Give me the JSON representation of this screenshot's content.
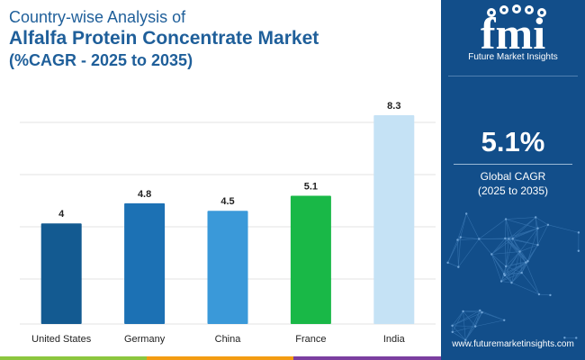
{
  "header": {
    "line1": "Country-wise Analysis of",
    "line2": "Alfalfa Protein Concentrate Market",
    "line3": "(%CAGR - 2025 to 2035)"
  },
  "chart_data": {
    "type": "bar",
    "categories": [
      "United States",
      "Germany",
      "China",
      "France",
      "India"
    ],
    "values": [
      4,
      4.8,
      4.5,
      5.1,
      8.3
    ],
    "data_labels": [
      "4",
      "4.8",
      "4.5",
      "5.1",
      "8.3"
    ],
    "bar_colors": [
      "#135a91",
      "#1c71b4",
      "#3a99d9",
      "#19b847",
      "#c5e2f5"
    ],
    "ylim": [
      0,
      8.3
    ],
    "grid": true,
    "title": "",
    "xlabel": "",
    "ylabel": ""
  },
  "panel": {
    "brand": "Future Market Insights",
    "cagr_value": "5.1%",
    "cagr_label": "Global CAGR",
    "cagr_period": "(2025 to 2035)",
    "website": "www.futuremarketinsights.com"
  },
  "colors": {
    "title": "#1f5f9a",
    "panel": "#124e8a",
    "accent_green": "#8cc63f",
    "accent_orange": "#f39c12",
    "accent_purple": "#7b3fa0"
  }
}
